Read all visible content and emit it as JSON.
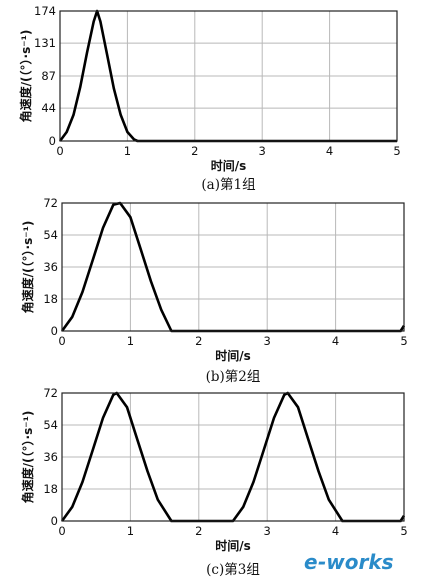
{
  "chart_data": [
    {
      "type": "line",
      "caption": "(a)第1组",
      "xlabel": "时间/s",
      "ylabel": "角速度/(（°）·s⁻¹)",
      "xlim": [
        0,
        5
      ],
      "ylim": [
        0,
        174
      ],
      "xticks": [
        "0",
        "1",
        "2",
        "3",
        "4",
        "5"
      ],
      "yticks": [
        "0",
        "44",
        "87",
        "131",
        "174"
      ],
      "grid": true,
      "series": [
        {
          "x": [
            0,
            0.1,
            0.2,
            0.3,
            0.4,
            0.5,
            0.55,
            0.6,
            0.7,
            0.8,
            0.9,
            1.0,
            1.1,
            1.15,
            2,
            3,
            4,
            5
          ],
          "y": [
            0,
            12,
            35,
            72,
            118,
            160,
            174,
            160,
            115,
            70,
            35,
            12,
            2,
            0,
            0,
            0,
            0,
            0
          ]
        }
      ]
    },
    {
      "type": "line",
      "caption": "(b)第2组",
      "xlabel": "时间/s",
      "ylabel": "角速度/(（°）·s⁻¹)",
      "xlim": [
        0,
        5
      ],
      "ylim": [
        0,
        72
      ],
      "xticks": [
        "0",
        "1",
        "2",
        "3",
        "4",
        "5"
      ],
      "yticks": [
        "0",
        "18",
        "36",
        "54",
        "72"
      ],
      "grid": true,
      "series": [
        {
          "x": [
            0,
            0.15,
            0.3,
            0.45,
            0.6,
            0.75,
            0.85,
            1.0,
            1.15,
            1.3,
            1.45,
            1.6,
            2,
            3,
            4,
            4.95,
            5
          ],
          "y": [
            0,
            8,
            22,
            40,
            58,
            71,
            72,
            64,
            46,
            28,
            12,
            0,
            0,
            0,
            0,
            0,
            3
          ]
        }
      ]
    },
    {
      "type": "line",
      "caption": "(c)第3组",
      "xlabel": "时间/s",
      "ylabel": "角速度/(（°）·s⁻¹)",
      "xlim": [
        0,
        5
      ],
      "ylim": [
        0,
        72
      ],
      "xticks": [
        "0",
        "1",
        "2",
        "3",
        "4",
        "5"
      ],
      "yticks": [
        "0",
        "18",
        "36",
        "54",
        "72"
      ],
      "grid": true,
      "series": [
        {
          "x": [
            0,
            0.15,
            0.3,
            0.45,
            0.6,
            0.75,
            0.8,
            0.95,
            1.1,
            1.25,
            1.4,
            1.6,
            2.0,
            2.5,
            2.65,
            2.8,
            2.95,
            3.1,
            3.25,
            3.3,
            3.45,
            3.6,
            3.75,
            3.9,
            4.1,
            4.95,
            5
          ],
          "y": [
            0,
            8,
            22,
            40,
            58,
            71,
            72,
            64,
            46,
            28,
            12,
            0,
            0,
            0,
            8,
            22,
            40,
            58,
            71,
            72,
            64,
            46,
            28,
            12,
            0,
            0,
            3
          ]
        }
      ]
    }
  ],
  "watermark": {
    "prefix": "e",
    "text": "-works",
    "color": "#2a8bc9"
  }
}
